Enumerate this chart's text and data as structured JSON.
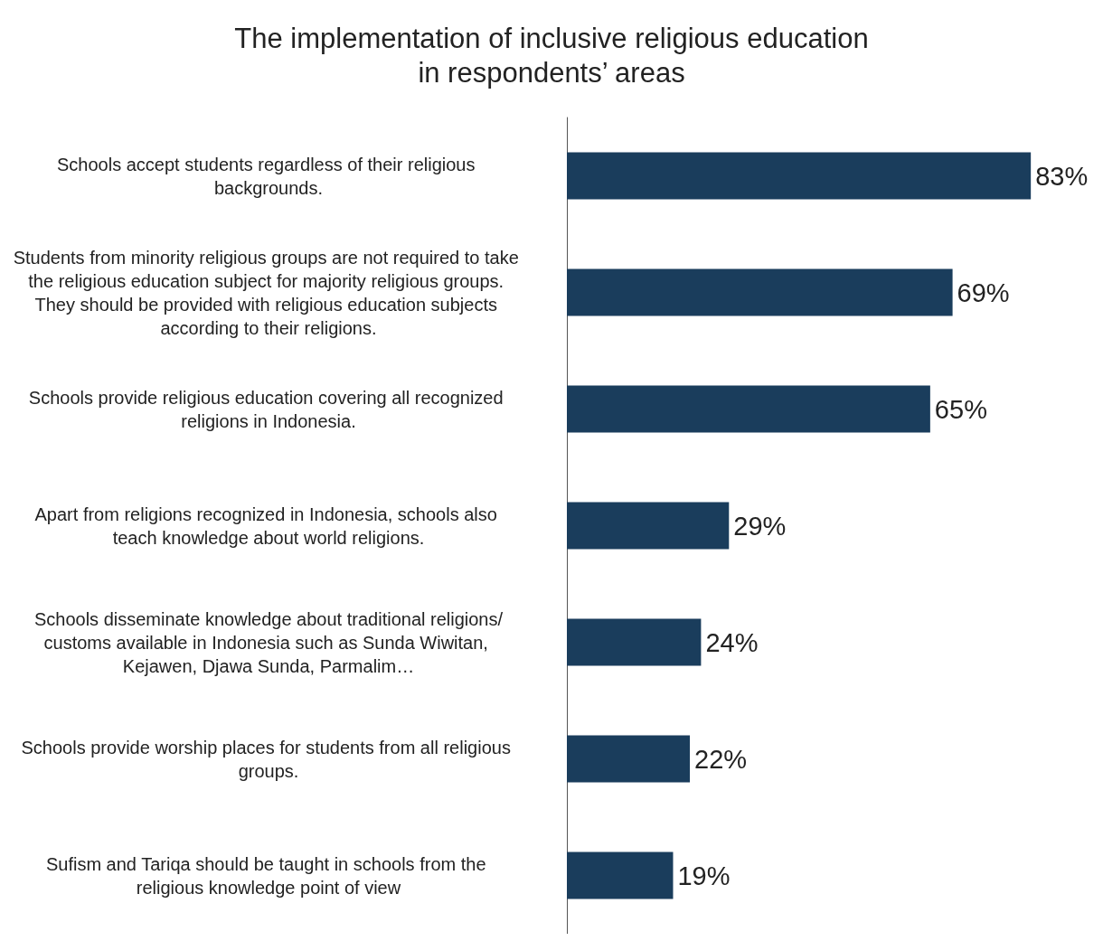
{
  "chart_data": {
    "type": "bar",
    "orientation": "horizontal",
    "title": "The implementation of inclusive religious education\nin respondents’ areas",
    "categories": [
      "Schools accept students regardless of their religious backgrounds.",
      "Students from minority religious groups are not required to take the religious education subject for majority religious groups. They should be provided with religious education subjects according to their religions.",
      "Schools provide religious education covering all recognized religions in Indonesia.",
      "Apart from religions recognized in Indonesia, schools also teach knowledge about world religions.",
      "Schools disseminate knowledge about traditional religions/customs available in Indonesia such as Sunda Wiwitan, Kejawen, Djawa Sunda, Parmalim…",
      "Schools provide worship places for students from all religious groups.",
      "Sufism and Tariqa should be taught in schools from the religious knowledge point of view"
    ],
    "values": [
      83,
      69,
      65,
      29,
      24,
      22,
      19
    ],
    "value_labels": [
      "83%",
      "69%",
      "65%",
      "29%",
      "24%",
      "22%",
      "19%"
    ],
    "color": "#1a3d5c"
  }
}
